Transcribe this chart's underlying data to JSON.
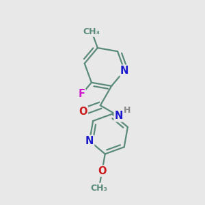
{
  "bg_color": "#e8e8e8",
  "bond_color": "#5a8a78",
  "bond_width": 1.6,
  "atom_colors": {
    "N": "#1a1acc",
    "O": "#cc1a1a",
    "F": "#cc1acc",
    "H": "#888888",
    "C": "#5a8a78"
  },
  "font_size": 10.5,
  "font_size_small": 9.0
}
